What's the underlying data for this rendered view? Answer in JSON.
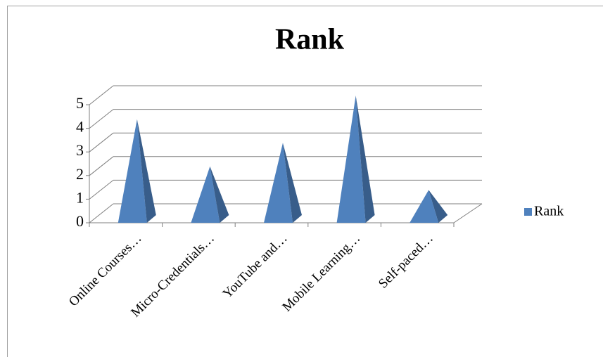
{
  "chart_data": {
    "type": "pyramid",
    "title": "Rank",
    "categories": [
      "Online Courses…",
      "Micro-Credentials…",
      "YouTube and…",
      "Mobile Learning…",
      "Self-paced…"
    ],
    "series": [
      {
        "name": "Rank",
        "color": "#4f81bd",
        "values": [
          4,
          2,
          3,
          5,
          1
        ]
      }
    ],
    "ylim": [
      0,
      5
    ],
    "yticks": [
      0,
      1,
      2,
      3,
      4,
      5
    ],
    "grid": true,
    "legend": "right"
  }
}
